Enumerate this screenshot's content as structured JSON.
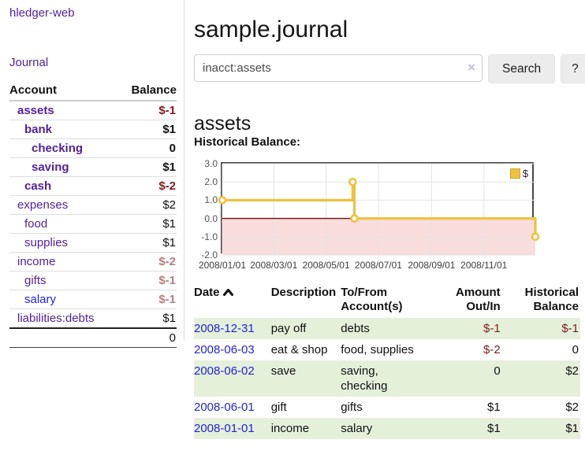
{
  "app": {
    "title": "hledger-web"
  },
  "nav": {
    "journal_label": "Journal"
  },
  "sidebar": {
    "header": {
      "account": "Account",
      "balance": "Balance"
    },
    "accounts": [
      {
        "name": "assets",
        "balance": "$-1",
        "depth": 0,
        "emphasized": true,
        "balance_tone": "neg-strong",
        "link_tone": "visited"
      },
      {
        "name": "bank",
        "balance": "$1",
        "depth": 1,
        "emphasized": true,
        "balance_tone": "normal",
        "link_tone": "visited"
      },
      {
        "name": "checking",
        "balance": "0",
        "depth": 2,
        "emphasized": true,
        "balance_tone": "normal",
        "link_tone": "visited"
      },
      {
        "name": "saving",
        "balance": "$1",
        "depth": 2,
        "emphasized": true,
        "balance_tone": "normal",
        "link_tone": "visited"
      },
      {
        "name": "cash",
        "balance": "$-2",
        "depth": 1,
        "emphasized": true,
        "balance_tone": "neg-strong",
        "link_tone": "visited"
      },
      {
        "name": "expenses",
        "balance": "$2",
        "depth": 0,
        "emphasized": false,
        "balance_tone": "normal",
        "link_tone": "visited"
      },
      {
        "name": "food",
        "balance": "$1",
        "depth": 1,
        "emphasized": false,
        "balance_tone": "normal",
        "link_tone": "visited"
      },
      {
        "name": "supplies",
        "balance": "$1",
        "depth": 1,
        "emphasized": false,
        "balance_tone": "normal",
        "link_tone": "visited"
      },
      {
        "name": "income",
        "balance": "$-2",
        "depth": 0,
        "emphasized": false,
        "balance_tone": "neg-soft",
        "link_tone": "visited"
      },
      {
        "name": "gifts",
        "balance": "$-1",
        "depth": 1,
        "emphasized": false,
        "balance_tone": "neg-soft",
        "link_tone": "visited"
      },
      {
        "name": "salary",
        "balance": "$-1",
        "depth": 1,
        "emphasized": false,
        "balance_tone": "neg-soft",
        "link_tone": "unvisited"
      },
      {
        "name": "liabilities:debts",
        "balance": "$1",
        "depth": 0,
        "emphasized": false,
        "balance_tone": "normal",
        "link_tone": "visited"
      }
    ],
    "total": "0"
  },
  "main": {
    "title": "sample.journal",
    "search": {
      "value": "inacct:assets",
      "clear_icon": "×",
      "button_label": "Search",
      "help_label": "?"
    },
    "account_heading": "assets",
    "chart_label": "Historical Balance:"
  },
  "chart_data": {
    "type": "line",
    "title": "Historical Balance:",
    "step": true,
    "x_range": [
      "2008/01/01",
      "2008/12/31"
    ],
    "ylim": [
      -2,
      3
    ],
    "y_ticks": [
      "3.0",
      "2.0",
      "1.0",
      "0.0",
      "-1.0",
      "-2.0"
    ],
    "x_ticks": [
      "2008/01/01",
      "2008/03/01",
      "2008/05/01",
      "2008/07/01",
      "2008/09/01",
      "2008/11/01"
    ],
    "series": [
      {
        "name": "$",
        "color": "#edc240",
        "points": [
          {
            "date": "2008/01/01",
            "value": 1
          },
          {
            "date": "2008/06/01",
            "value": 2
          },
          {
            "date": "2008/06/03",
            "value": 0
          },
          {
            "date": "2008/12/31",
            "value": -1
          }
        ]
      }
    ],
    "legend": {
      "label": "$",
      "position": "top-right",
      "swatch_color": "#edc240"
    },
    "grid": true,
    "zero_line_color": "#7a0c0c",
    "negative_region_color": "#f9dcdc"
  },
  "register": {
    "headers": {
      "date": "Date",
      "description": "Description",
      "account": "To/From Account(s)",
      "amount": "Amount Out/In",
      "balance": "Historical Balance"
    },
    "rows": [
      {
        "date": "2008-12-31",
        "description": "pay off",
        "accounts": "debts",
        "amount": "$-1",
        "balance": "$-1",
        "amount_negative": true,
        "balance_negative": true
      },
      {
        "date": "2008-06-03",
        "description": "eat & shop",
        "accounts": "food, supplies",
        "amount": "$-2",
        "balance": "0",
        "amount_negative": true,
        "balance_negative": false
      },
      {
        "date": "2008-06-02",
        "description": "save",
        "accounts": "saving, checking",
        "amount": "0",
        "balance": "$2",
        "amount_negative": false,
        "balance_negative": false
      },
      {
        "date": "2008-06-01",
        "description": "gift",
        "accounts": "gifts",
        "amount": "$1",
        "balance": "$2",
        "amount_negative": false,
        "balance_negative": false
      },
      {
        "date": "2008-01-01",
        "description": "income",
        "accounts": "salary",
        "amount": "$1",
        "balance": "$1",
        "amount_negative": false,
        "balance_negative": false
      }
    ]
  },
  "colors": {
    "accent_purple": "#54219b",
    "link_blue": "#2323d6",
    "negative": "#7e1c1c",
    "negative_soft": "#b67f7f",
    "stripe_green": "#e4f0da",
    "series_yellow": "#edc240",
    "plot_border": "#474747"
  }
}
